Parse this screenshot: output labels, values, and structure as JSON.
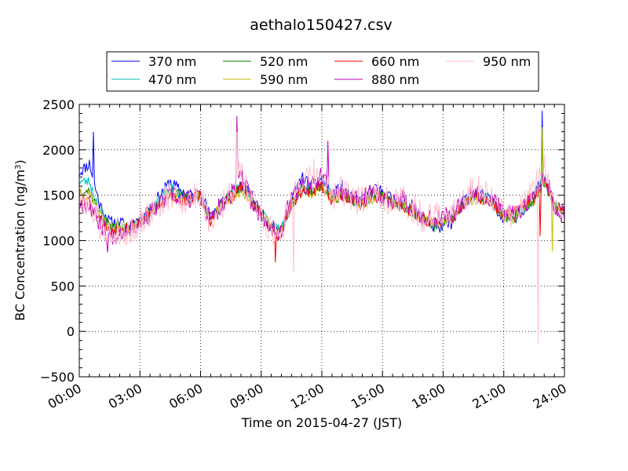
{
  "chart_data": {
    "type": "line",
    "title": "aethalo150427.csv",
    "xlabel": "Time on 2015-04-27 (JST)",
    "ylabel": "BC Concentration (ng/m",
    "ylabel_sup": "3",
    "ylabel_end": ")",
    "xlim": [
      0,
      24
    ],
    "ylim": [
      -500,
      2500
    ],
    "x_ticks": [
      0,
      3,
      6,
      9,
      12,
      15,
      18,
      21,
      24
    ],
    "x_tick_labels": [
      "00:00",
      "03:00",
      "06:00",
      "09:00",
      "12:00",
      "15:00",
      "18:00",
      "21:00",
      "24:00"
    ],
    "y_ticks": [
      -500,
      0,
      500,
      1000,
      1500,
      2000,
      2500
    ],
    "y_tick_labels": [
      "−500",
      "0",
      "500",
      "1000",
      "1500",
      "2000",
      "2500"
    ],
    "grid": true,
    "legend_position": "top-center",
    "anchor_hours": [
      0,
      0.5,
      1,
      1.5,
      2,
      2.5,
      3,
      3.5,
      4,
      4.5,
      5,
      5.5,
      6,
      6.5,
      7,
      7.5,
      8,
      8.5,
      9,
      9.5,
      10,
      10.5,
      11,
      11.5,
      12,
      12.5,
      13,
      13.5,
      14,
      14.5,
      15,
      15.5,
      16,
      16.5,
      17,
      17.5,
      18,
      18.5,
      19,
      19.5,
      20,
      20.5,
      21,
      21.5,
      22,
      22.5,
      23,
      23.5,
      24
    ],
    "series": [
      {
        "name": "370 nm",
        "color": "#0000ff",
        "noise": 70,
        "seed": 11,
        "values": [
          1750,
          1850,
          1400,
          1200,
          1200,
          1150,
          1250,
          1350,
          1500,
          1650,
          1550,
          1500,
          1550,
          1250,
          1450,
          1500,
          1600,
          1500,
          1300,
          1150,
          1100,
          1450,
          1700,
          1600,
          1700,
          1500,
          1600,
          1450,
          1450,
          1550,
          1550,
          1450,
          1450,
          1350,
          1250,
          1150,
          1150,
          1200,
          1450,
          1500,
          1500,
          1400,
          1250,
          1250,
          1350,
          1500,
          1700,
          1400,
          1300
        ],
        "spikes": [
          [
            0.7,
            2200
          ],
          [
            22.9,
            2430
          ]
        ]
      },
      {
        "name": "470 nm",
        "color": "#00bfbf",
        "noise": 60,
        "seed": 23,
        "values": [
          1650,
          1650,
          1350,
          1150,
          1150,
          1150,
          1200,
          1300,
          1450,
          1600,
          1500,
          1450,
          1500,
          1200,
          1400,
          1500,
          1600,
          1450,
          1300,
          1150,
          1150,
          1400,
          1600,
          1550,
          1650,
          1500,
          1550,
          1450,
          1400,
          1500,
          1500,
          1400,
          1400,
          1350,
          1250,
          1200,
          1200,
          1250,
          1400,
          1500,
          1500,
          1400,
          1300,
          1300,
          1350,
          1500,
          1700,
          1400,
          1300
        ],
        "spikes": [
          [
            22.9,
            2050
          ]
        ]
      },
      {
        "name": "520 nm",
        "color": "#008000",
        "noise": 60,
        "seed": 37,
        "values": [
          1550,
          1550,
          1300,
          1150,
          1150,
          1150,
          1200,
          1300,
          1400,
          1550,
          1500,
          1450,
          1500,
          1200,
          1400,
          1500,
          1600,
          1450,
          1300,
          1150,
          1100,
          1400,
          1550,
          1550,
          1600,
          1450,
          1500,
          1450,
          1400,
          1500,
          1500,
          1400,
          1400,
          1300,
          1250,
          1150,
          1200,
          1250,
          1400,
          1500,
          1450,
          1400,
          1250,
          1250,
          1350,
          1450,
          1650,
          1400,
          1300
        ],
        "spikes": [
          [
            22.9,
            2200
          ]
        ]
      },
      {
        "name": "590 nm",
        "color": "#bfbf00",
        "noise": 60,
        "seed": 41,
        "values": [
          1500,
          1500,
          1300,
          1150,
          1150,
          1150,
          1200,
          1300,
          1400,
          1500,
          1450,
          1450,
          1500,
          1200,
          1400,
          1450,
          1550,
          1450,
          1300,
          1150,
          1100,
          1400,
          1550,
          1500,
          1600,
          1450,
          1500,
          1450,
          1400,
          1450,
          1500,
          1400,
          1400,
          1300,
          1250,
          1200,
          1200,
          1250,
          1400,
          1450,
          1450,
          1400,
          1250,
          1250,
          1350,
          1450,
          1650,
          1400,
          1300
        ],
        "spikes": [
          [
            22.9,
            2250
          ],
          [
            23.4,
            880
          ]
        ]
      },
      {
        "name": "660 nm",
        "color": "#ff0000",
        "noise": 70,
        "seed": 53,
        "values": [
          1450,
          1450,
          1250,
          1100,
          1150,
          1150,
          1200,
          1300,
          1400,
          1500,
          1450,
          1450,
          1500,
          1200,
          1400,
          1450,
          1600,
          1450,
          1300,
          1100,
          1050,
          1400,
          1550,
          1550,
          1600,
          1450,
          1500,
          1450,
          1400,
          1500,
          1500,
          1400,
          1400,
          1300,
          1250,
          1200,
          1200,
          1250,
          1400,
          1500,
          1450,
          1400,
          1300,
          1300,
          1400,
          1500,
          1700,
          1400,
          1300
        ],
        "spikes": [
          [
            9.7,
            760
          ],
          [
            22.8,
            1050
          ]
        ]
      },
      {
        "name": "880 nm",
        "color": "#bf00bf",
        "noise": 110,
        "seed": 67,
        "values": [
          1400,
          1400,
          1200,
          1050,
          1100,
          1150,
          1200,
          1300,
          1400,
          1500,
          1450,
          1450,
          1500,
          1200,
          1400,
          1500,
          1700,
          1450,
          1250,
          1150,
          1100,
          1500,
          1600,
          1600,
          1700,
          1500,
          1550,
          1450,
          1450,
          1550,
          1500,
          1400,
          1450,
          1350,
          1250,
          1250,
          1300,
          1300,
          1450,
          1550,
          1500,
          1450,
          1300,
          1300,
          1350,
          1500,
          1750,
          1400,
          1250
        ],
        "spikes": [
          [
            1.4,
            870
          ],
          [
            7.8,
            2370
          ],
          [
            12.3,
            2100
          ]
        ]
      },
      {
        "name": "950 nm",
        "color": "#ffc0cb",
        "noise": 170,
        "seed": 79,
        "values": [
          1450,
          1450,
          1200,
          1050,
          1100,
          1100,
          1200,
          1300,
          1400,
          1500,
          1450,
          1450,
          1500,
          1200,
          1400,
          1500,
          1750,
          1450,
          1300,
          1100,
          1100,
          1500,
          1650,
          1650,
          1700,
          1500,
          1550,
          1450,
          1450,
          1550,
          1500,
          1400,
          1450,
          1350,
          1250,
          1250,
          1300,
          1300,
          1450,
          1550,
          1550,
          1450,
          1300,
          1300,
          1400,
          1550,
          1800,
          1400,
          1250
        ],
        "spikes": [
          [
            7.8,
            2200
          ],
          [
            11.6,
            1900
          ],
          [
            22.7,
            -140
          ],
          [
            10.6,
            650
          ]
        ]
      }
    ]
  }
}
